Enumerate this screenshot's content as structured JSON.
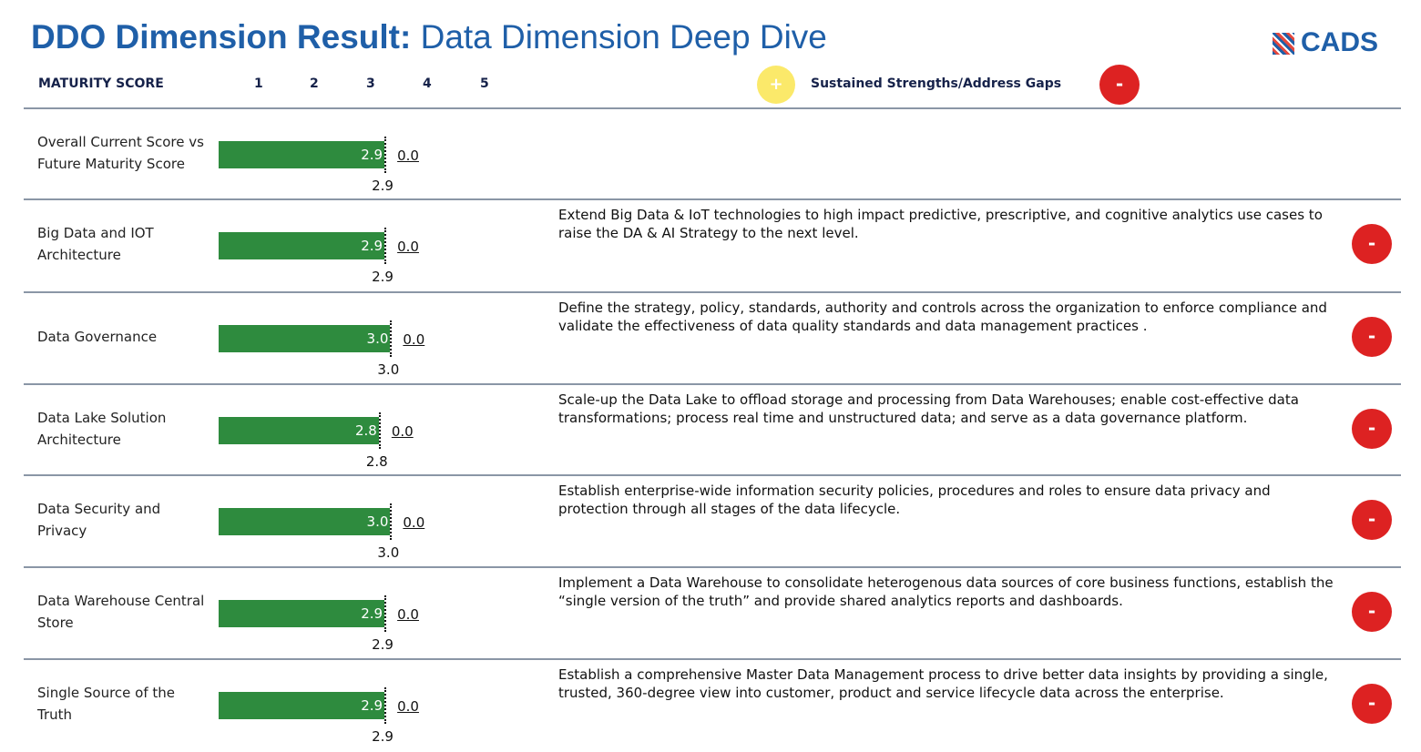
{
  "header": {
    "title_bold": "DDO Dimension Result:",
    "title_rest": "Data Dimension Deep Dive",
    "logo": "CADS"
  },
  "scale": {
    "label": "MATURITY SCORE",
    "ticks": [
      "1",
      "2",
      "3",
      "4",
      "5"
    ]
  },
  "legend": {
    "plus": "+",
    "text": "Sustained Strengths/Address Gaps",
    "minus": "-"
  },
  "rows": [
    {
      "label": "Overall Current Score vs Future Maturity Score",
      "score": {
        "value": 2.9,
        "label": "2.9"
      },
      "future": {
        "value": 0,
        "label": "0.0"
      }
    },
    {
      "label": "Big Data and IOT Architecture",
      "score": {
        "value": 2.9,
        "label": "2.9"
      },
      "future": {
        "value": 0,
        "label": "0.0"
      },
      "description": "Extend Big Data & IoT technologies to high impact predictive, prescriptive, and  cognitive analytics use cases to raise the DA & AI Strategy to the next level.",
      "icon": "-"
    },
    {
      "label": "Data Governance",
      "score": {
        "value": 3.0,
        "label": "3.0"
      },
      "future": {
        "value": 0,
        "label": "0.0"
      },
      "description": "Define the strategy, policy, standards, authority and controls across the organization to enforce compliance and validate the effectiveness of data quality standards and data management practices .",
      "icon": "-"
    },
    {
      "label": "Data Lake Solution Architecture",
      "score": {
        "value": 2.8,
        "label": "2.8"
      },
      "future": {
        "value": 0,
        "label": "0.0"
      },
      "description": "Scale-up the Data Lake to offload storage and processing from Data Warehouses; enable cost-effective data transformations; process real time and unstructured data; and serve as a data governance platform.",
      "icon": "-"
    },
    {
      "label": "Data Security and Privacy",
      "score": {
        "value": 3.0,
        "label": "3.0"
      },
      "future": {
        "value": 0,
        "label": "0.0"
      },
      "description": "Establish enterprise-wide information security policies, procedures and roles to ensure data privacy and protection through all stages of the data lifecycle.",
      "icon": "-"
    },
    {
      "label": "Data Warehouse Central Store",
      "score": {
        "value": 2.9,
        "label": "2.9"
      },
      "future": {
        "value": 0,
        "label": "0.0"
      },
      "description": "Implement a Data Warehouse to consolidate heterogenous data sources of core business functions, establish the  “single version of the truth” and provide shared analytics reports and dashboards.",
      "icon": "-"
    },
    {
      "label": "Single Source of the Truth",
      "score": {
        "value": 2.9,
        "label": "2.9"
      },
      "future": {
        "value": 0,
        "label": "0.0"
      },
      "description": "Establish a comprehensive Master Data Management process to drive better data insights by providing a single, trusted, 360-degree view into customer, product and service lifecycle data across the enterprise.",
      "icon": "-"
    }
  ]
}
